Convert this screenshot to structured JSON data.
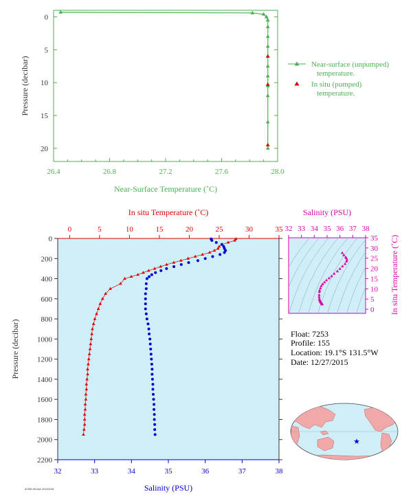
{
  "colors": {
    "green": "#4caf50",
    "red": "#dd0000",
    "blue": "#0000cc",
    "magenta": "#dd00aa",
    "axis_dark": "#333333",
    "plot_bg": "#cfeef8",
    "land": "#f0a8a8",
    "ocean": "#cfeef8"
  },
  "float_info": {
    "float": "Float:  7253",
    "profile": "Profile:  155",
    "location": "Location:  19.1°S  131.5°W",
    "date": "Date:  12/27/2015"
  },
  "footnote": "AOML/NOAA 20160108",
  "chart_data": [
    {
      "type": "line",
      "name": "near-surface",
      "xlabel": "Near-Surface Temperature (˚C)",
      "ylabel": "Pressure (decibar)",
      "xlim": [
        26.4,
        28.0
      ],
      "ylim": [
        22,
        -1
      ],
      "xticks": [
        "26.4",
        "26.8",
        "27.2",
        "27.6",
        "28.0"
      ],
      "yticks": [
        "0",
        "5",
        "10",
        "15",
        "20"
      ],
      "legend": [
        "Near-surface (unpumped) temperature.",
        "In situ (pumped) temperature."
      ],
      "legend_position": "right",
      "series": [
        {
          "name": "Near-surface (unpumped) temperature.",
          "x": [
            26.45,
            27.82,
            27.9,
            27.92,
            27.93,
            27.93,
            27.93,
            27.93,
            27.93,
            27.93,
            27.93,
            27.93,
            27.93,
            27.93,
            27.93
          ],
          "y": [
            -0.7,
            -0.6,
            -0.4,
            0.0,
            0.5,
            1.5,
            3.0,
            4.5,
            6.0,
            7.5,
            9.0,
            10.5,
            12.0,
            16.0,
            20.0
          ]
        },
        {
          "name": "In situ (pumped) temperature.",
          "x": [
            27.93,
            27.93,
            27.93
          ],
          "y": [
            6.0,
            10.3,
            19.5
          ]
        }
      ]
    },
    {
      "type": "scatter",
      "name": "profile",
      "ylabel": "Pressure (decibar)",
      "top_xlabel": "In situ Temperature (˚C)",
      "bottom_xlabel": "Salinity (PSU)",
      "top_xlim": [
        -2,
        35
      ],
      "bottom_xlim": [
        32,
        38
      ],
      "ylim": [
        2200,
        0
      ],
      "top_xticks": [
        "0",
        "5",
        "10",
        "15",
        "20",
        "25",
        "30",
        "35"
      ],
      "bottom_xticks": [
        "32",
        "33",
        "34",
        "35",
        "36",
        "37",
        "38"
      ],
      "yticks": [
        "0",
        "200",
        "400",
        "600",
        "800",
        "1000",
        "1200",
        "1400",
        "1600",
        "1800",
        "2000",
        "2200"
      ],
      "series": [
        {
          "name": "In situ Temperature (˚C)",
          "pressure": [
            5,
            20,
            40,
            60,
            80,
            100,
            120,
            140,
            160,
            180,
            200,
            220,
            240,
            260,
            280,
            300,
            320,
            340,
            360,
            380,
            400,
            450,
            500,
            550,
            600,
            650,
            700,
            750,
            800,
            850,
            900,
            950,
            1000,
            1050,
            1100,
            1150,
            1200,
            1250,
            1300,
            1350,
            1400,
            1450,
            1500,
            1550,
            1600,
            1650,
            1700,
            1750,
            1800,
            1850,
            1900,
            1950
          ],
          "values": [
            27.8,
            27.6,
            26.5,
            25.5,
            25.0,
            24.8,
            24.2,
            23.4,
            22.2,
            21.0,
            19.8,
            18.6,
            17.4,
            16.2,
            15.2,
            14.2,
            13.2,
            12.3,
            11.4,
            10.3,
            9.2,
            8.5,
            6.8,
            6.0,
            5.5,
            5.1,
            4.8,
            4.5,
            4.2,
            4.0,
            3.8,
            3.7,
            3.6,
            3.5,
            3.4,
            3.3,
            3.2,
            3.1,
            3.0,
            3.0,
            2.9,
            2.8,
            2.8,
            2.7,
            2.7,
            2.6,
            2.6,
            2.5,
            2.5,
            2.5,
            2.4,
            2.3
          ]
        },
        {
          "name": "Salinity (PSU)",
          "pressure": [
            5,
            20,
            40,
            60,
            80,
            100,
            120,
            140,
            160,
            180,
            200,
            220,
            240,
            260,
            280,
            300,
            320,
            340,
            360,
            380,
            400,
            450,
            500,
            550,
            600,
            650,
            700,
            750,
            800,
            850,
            900,
            950,
            1000,
            1050,
            1100,
            1150,
            1200,
            1250,
            1300,
            1350,
            1400,
            1450,
            1500,
            1550,
            1600,
            1650,
            1700,
            1750,
            1800,
            1850,
            1900,
            1950
          ],
          "values": [
            36.16,
            36.18,
            36.3,
            36.45,
            36.5,
            36.52,
            36.55,
            36.52,
            36.4,
            36.2,
            36.0,
            35.8,
            35.55,
            35.35,
            35.15,
            34.95,
            34.8,
            34.65,
            34.55,
            34.48,
            34.42,
            34.4,
            34.4,
            34.38,
            34.38,
            34.38,
            34.38,
            34.4,
            34.42,
            34.45,
            34.47,
            34.48,
            34.5,
            34.51,
            34.52,
            34.53,
            34.54,
            34.55,
            34.56,
            34.56,
            34.57,
            34.58,
            34.58,
            34.59,
            34.6,
            34.61,
            34.61,
            34.62,
            34.62,
            34.63,
            34.63,
            34.64
          ]
        }
      ]
    },
    {
      "type": "scatter",
      "name": "ts-diagram",
      "top_xlabel": "Salinity (PSU)",
      "right_ylabel": "In situ Temperature (˚C)",
      "xlim": [
        32,
        38
      ],
      "ylim": [
        -2,
        35
      ],
      "xticks": [
        "32",
        "33",
        "34",
        "35",
        "36",
        "37",
        "38"
      ],
      "yticks": [
        "0",
        "5",
        "10",
        "15",
        "20",
        "25",
        "30",
        "35"
      ],
      "series": [
        {
          "name": "T-S",
          "salinity": [
            34.63,
            34.6,
            34.58,
            34.56,
            34.54,
            34.52,
            34.5,
            34.48,
            34.45,
            34.42,
            34.4,
            34.38,
            34.38,
            34.4,
            34.42,
            34.48,
            34.55,
            34.65,
            34.8,
            34.95,
            35.15,
            35.35,
            35.55,
            35.8,
            36.0,
            36.2,
            36.4,
            36.52,
            36.55,
            36.5,
            36.45,
            36.3,
            36.18
          ],
          "temperature": [
            2.4,
            2.6,
            2.8,
            3.0,
            3.2,
            3.4,
            3.6,
            3.8,
            4.0,
            4.5,
            5.0,
            6.0,
            7.0,
            8.5,
            9.2,
            10.3,
            11.4,
            12.3,
            13.2,
            14.2,
            15.2,
            16.2,
            17.4,
            18.6,
            19.8,
            21.0,
            22.2,
            23.4,
            24.2,
            25.0,
            25.5,
            26.5,
            27.6
          ]
        }
      ]
    }
  ]
}
